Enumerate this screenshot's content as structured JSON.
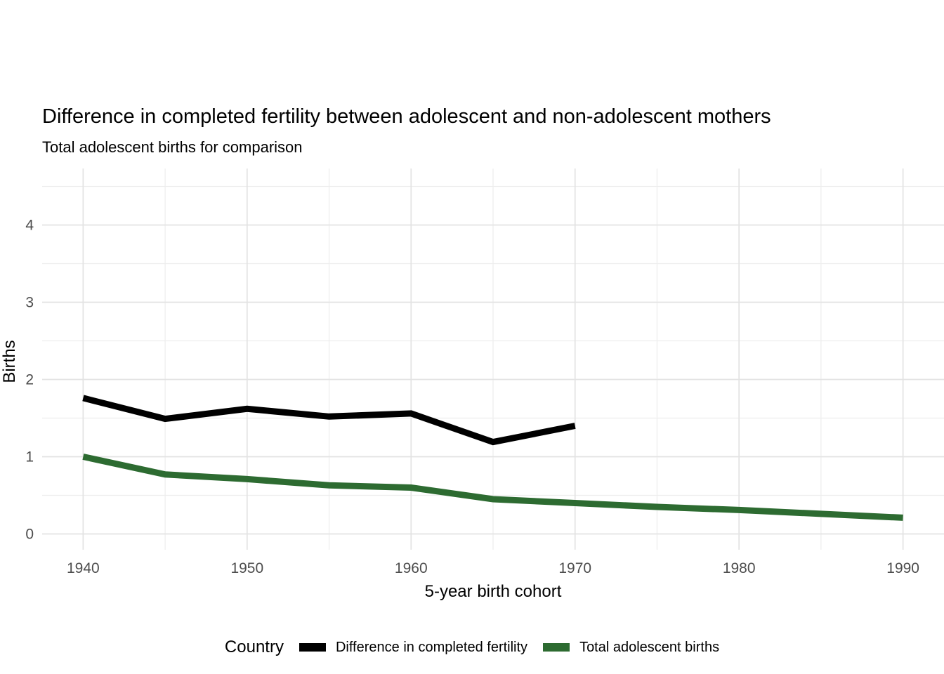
{
  "title": "Difference in completed fertility between adolescent and non-adolescent mothers",
  "subtitle": "Total adolescent births for comparison",
  "axes": {
    "x_label": "5-year birth cohort",
    "y_label": "Births"
  },
  "legend": {
    "title": "Country",
    "items": [
      {
        "label": "Difference in completed fertility",
        "color": "#000000"
      },
      {
        "label": "Total adolescent births",
        "color": "#2d6b31"
      }
    ]
  },
  "colors": {
    "series_difference": "#000000",
    "series_total": "#2d6b31",
    "grid_major": "#e3e3e3",
    "grid_minor": "#ededed",
    "tick_text": "#4d4d4d",
    "background": "#ffffff"
  },
  "chart_data": {
    "type": "line",
    "title": "Difference in completed fertility between adolescent and non-adolescent mothers",
    "subtitle": "Total adolescent births for comparison",
    "xlabel": "5-year birth cohort",
    "ylabel": "Births",
    "x_ticks": [
      1940,
      1950,
      1960,
      1970,
      1980,
      1990
    ],
    "x_minor_ticks": [
      1945,
      1955,
      1965,
      1975,
      1985
    ],
    "y_ticks": [
      0,
      1,
      2,
      3,
      4
    ],
    "y_minor_ticks": [
      0.5,
      1.5,
      2.5,
      3.5,
      4.5
    ],
    "xlim": [
      1937.5,
      1992.5
    ],
    "ylim": [
      -0.2,
      4.73
    ],
    "grid": true,
    "legend_position": "bottom",
    "line_width": 9,
    "series": [
      {
        "name": "Difference in completed fertility",
        "color": "#000000",
        "x": [
          1940,
          1945,
          1950,
          1955,
          1960,
          1965,
          1970
        ],
        "values": [
          1.76,
          1.49,
          1.62,
          1.52,
          1.56,
          1.19,
          1.4
        ]
      },
      {
        "name": "Total adolescent births",
        "color": "#2d6b31",
        "x": [
          1940,
          1945,
          1950,
          1955,
          1960,
          1965,
          1970,
          1975,
          1980,
          1985,
          1990
        ],
        "values": [
          1.0,
          0.77,
          0.71,
          0.63,
          0.6,
          0.45,
          0.4,
          0.35,
          0.31,
          0.26,
          0.21
        ]
      }
    ]
  }
}
